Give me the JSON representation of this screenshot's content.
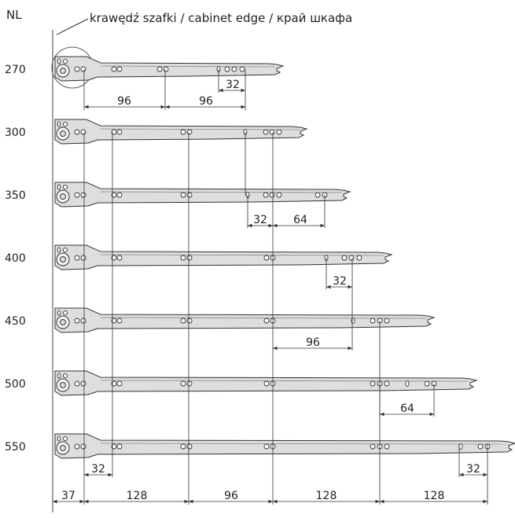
{
  "header": {
    "nl_label": "NL",
    "edge_label": "krawędź szafki / cabinet edge / край шкафа"
  },
  "colors": {
    "rail_fill": "#dedede",
    "rail_stroke": "#333333",
    "line": "#333333",
    "text": "#222222"
  },
  "rails": [
    {
      "nl": "270"
    },
    {
      "nl": "300"
    },
    {
      "nl": "350"
    },
    {
      "nl": "400"
    },
    {
      "nl": "450"
    },
    {
      "nl": "500"
    },
    {
      "nl": "550"
    }
  ],
  "dimensions": {
    "d270_a": "96",
    "d270_b": "96",
    "d270_c": "32",
    "d350_a": "32",
    "d350_b": "64",
    "d400_a": "32",
    "d450_a": "96",
    "d500_a": "64",
    "d550_a": "32",
    "d550_b": "32",
    "bottom_1": "37",
    "bottom_2": "128",
    "bottom_3": "96",
    "bottom_4": "128",
    "bottom_5": "128"
  }
}
